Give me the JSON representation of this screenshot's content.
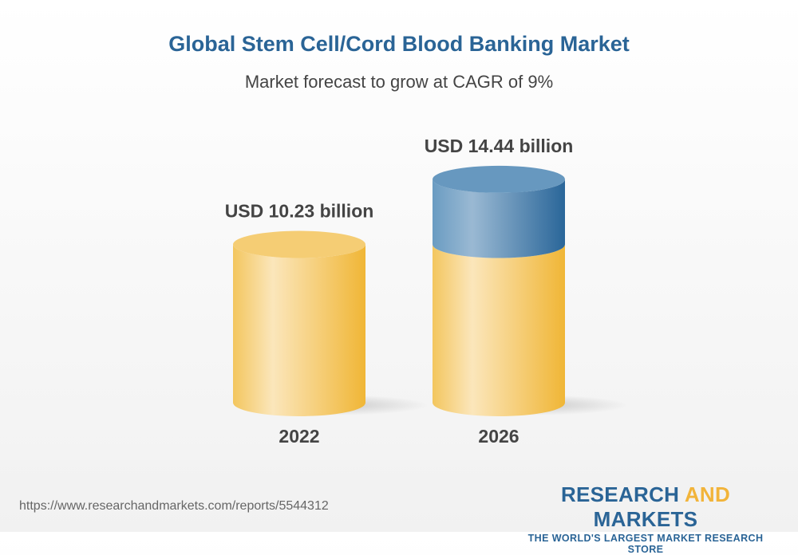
{
  "chart_data": {
    "type": "bar",
    "style": "3d-cylinder",
    "title": "Global Stem Cell/Cord Blood Banking Market",
    "subtitle": "Market forecast to grow at CAGR of 9%",
    "categories": [
      "2022",
      "2026"
    ],
    "values": [
      10.23,
      14.44
    ],
    "data_labels": [
      "USD 10.23 billion",
      "USD 14.44 billion"
    ],
    "unit": "USD billion",
    "colors": {
      "base": "#f2c04e",
      "growth": "#3f7fb0"
    },
    "grid": false
  },
  "footer": {
    "url": "https://www.researchandmarkets.com/reports/5544312",
    "logo_word1": "RESEARCH ",
    "logo_word2": "AND",
    "logo_word3": " MARKETS",
    "logo_tagline": "THE WORLD'S LARGEST MARKET RESEARCH STORE"
  }
}
